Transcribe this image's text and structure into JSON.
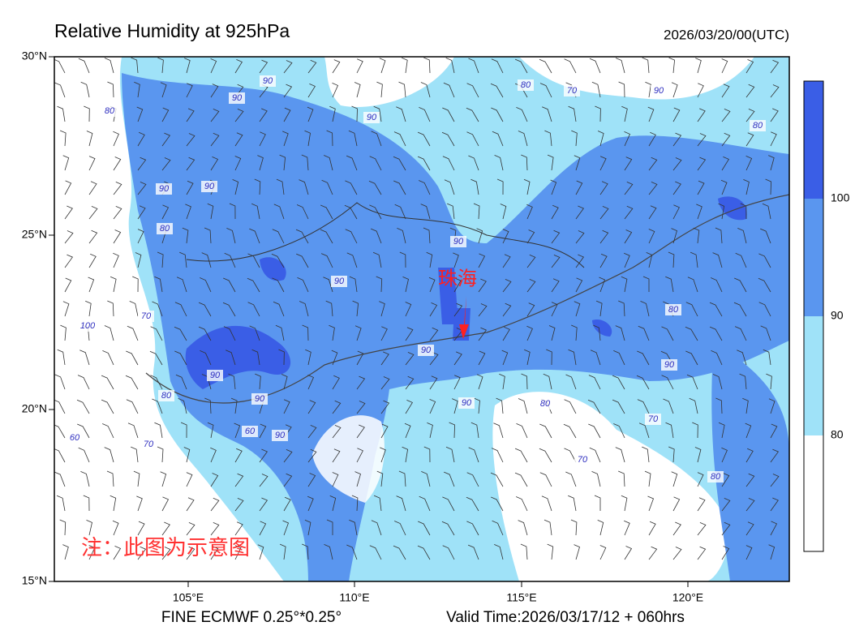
{
  "header": {
    "title": "Relative Humidity at 925hPa",
    "time": "2026/03/20/00(UTC)"
  },
  "map": {
    "lat_labels": [
      "30°N",
      "25°N",
      "20°N",
      "15°N"
    ],
    "lon_labels": [
      "105°E",
      "110°E",
      "115°E",
      "120°E"
    ],
    "contour_labels": [
      "90",
      "80",
      "90",
      "90",
      "80",
      "70",
      "90",
      "80",
      "90",
      "90",
      "80",
      "90",
      "90",
      "80",
      "70",
      "100",
      "90",
      "90",
      "90",
      "90",
      "80",
      "80",
      "90",
      "70",
      "60",
      "70",
      "60",
      "90",
      "80",
      "70"
    ],
    "city": "珠海",
    "note": "注：此图为示意图"
  },
  "colorbar": {
    "labels": [
      "100",
      "90",
      "80"
    ]
  },
  "footer": {
    "model": "FINE ECMWF 0.25°*0.25°",
    "valid": "Valid Time:2026/03/17/12 + 060hrs"
  }
}
